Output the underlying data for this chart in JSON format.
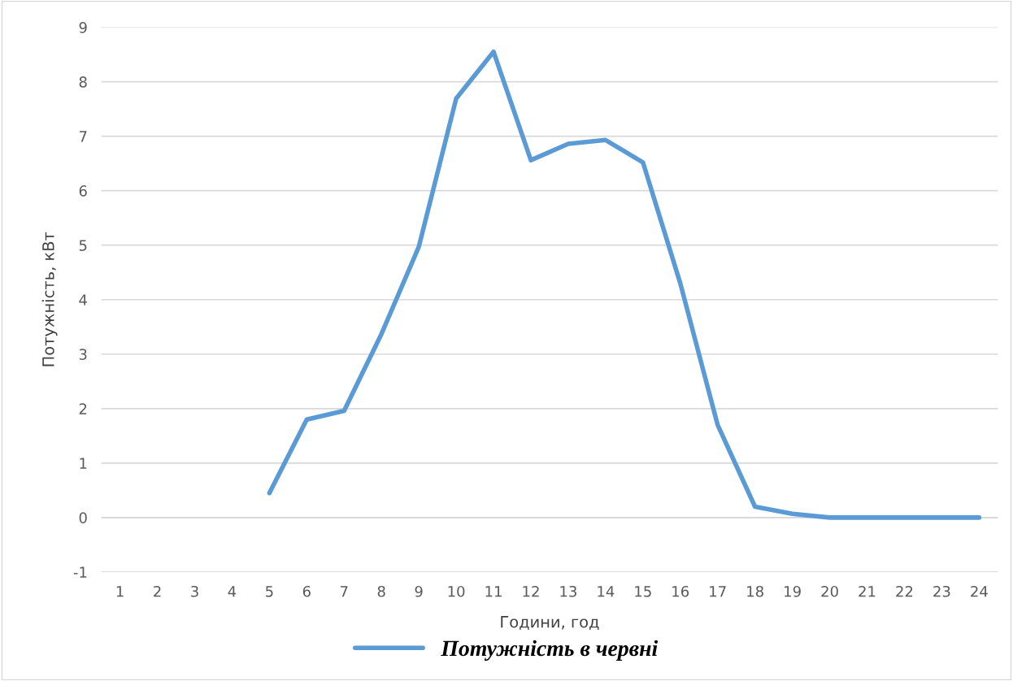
{
  "chart_data": {
    "type": "line",
    "xlabel": "Години, год",
    "ylabel": "Потужність, кВт",
    "categories": [
      "1",
      "2",
      "3",
      "4",
      "5",
      "6",
      "7",
      "8",
      "9",
      "10",
      "11",
      "12",
      "13",
      "14",
      "15",
      "16",
      "17",
      "18",
      "19",
      "20",
      "21",
      "22",
      "23",
      "24"
    ],
    "series": [
      {
        "name": "Потужність в червні",
        "color": "#5b9bd5",
        "values": [
          null,
          null,
          null,
          null,
          0.45,
          1.8,
          1.96,
          3.37,
          4.97,
          7.69,
          8.55,
          6.56,
          6.86,
          6.93,
          6.52,
          4.3,
          1.7,
          0.2,
          0.07,
          0,
          0,
          0,
          0,
          0
        ]
      }
    ],
    "ylim": [
      -1,
      9
    ],
    "yticks": [
      -1,
      0,
      1,
      2,
      3,
      4,
      5,
      6,
      7,
      8,
      9
    ],
    "grid": "y",
    "legend": "bottom",
    "marker": "none",
    "line_style": "solid"
  }
}
